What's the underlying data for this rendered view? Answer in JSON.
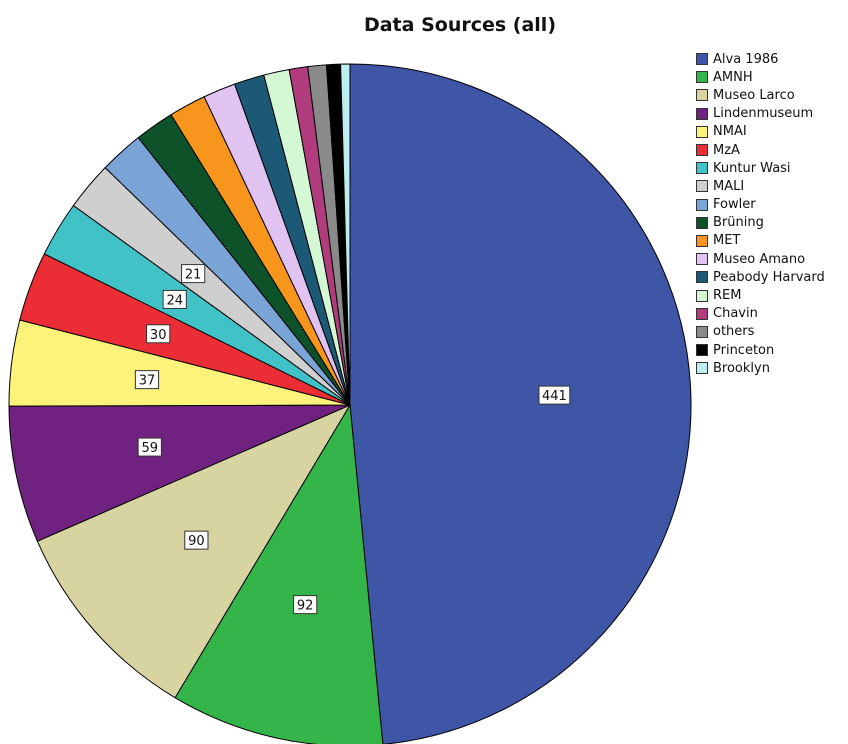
{
  "chart_data": {
    "type": "pie",
    "title": "Data Sources (all)",
    "legend_position": "right",
    "slices": [
      {
        "name": "Alva 1986",
        "value": 441,
        "color": "#3f55a6",
        "label": "441"
      },
      {
        "name": "AMNH",
        "value": 92,
        "color": "#33b54a",
        "label": "92"
      },
      {
        "name": "Museo Larco",
        "value": 90,
        "color": "#d8d4a2",
        "label": "90"
      },
      {
        "name": "Lindenmuseum",
        "value": 59,
        "color": "#6f2280",
        "label": "59"
      },
      {
        "name": "NMAI",
        "value": 37,
        "color": "#fdf27a",
        "label": "37"
      },
      {
        "name": "MzA",
        "value": 30,
        "color": "#eb2e36",
        "label": "30"
      },
      {
        "name": "Kuntur Wasi",
        "value": 24,
        "color": "#40c2c6",
        "label": "24"
      },
      {
        "name": "MALI",
        "value": 21,
        "color": "#cfcfcf",
        "label": "21"
      },
      {
        "name": "Fowler",
        "value": 19,
        "color": "#7aa3d6",
        "label": ""
      },
      {
        "name": "Brüning",
        "value": 17,
        "color": "#0e5229",
        "label": ""
      },
      {
        "name": "MET",
        "value": 16,
        "color": "#f7951d",
        "label": ""
      },
      {
        "name": "Museo Amano",
        "value": 14,
        "color": "#e0c3f0",
        "label": ""
      },
      {
        "name": "Peabody Harvard",
        "value": 13,
        "color": "#1b5977",
        "label": ""
      },
      {
        "name": "REM",
        "value": 11,
        "color": "#d4f7d4",
        "label": ""
      },
      {
        "name": "Chavin",
        "value": 8,
        "color": "#b03c7e",
        "label": ""
      },
      {
        "name": "others",
        "value": 8,
        "color": "#8a8a8a",
        "label": ""
      },
      {
        "name": "Princeton",
        "value": 6,
        "color": "#000000",
        "label": ""
      },
      {
        "name": "Brooklyn",
        "value": 4,
        "color": "#bfeef2",
        "label": ""
      }
    ]
  }
}
